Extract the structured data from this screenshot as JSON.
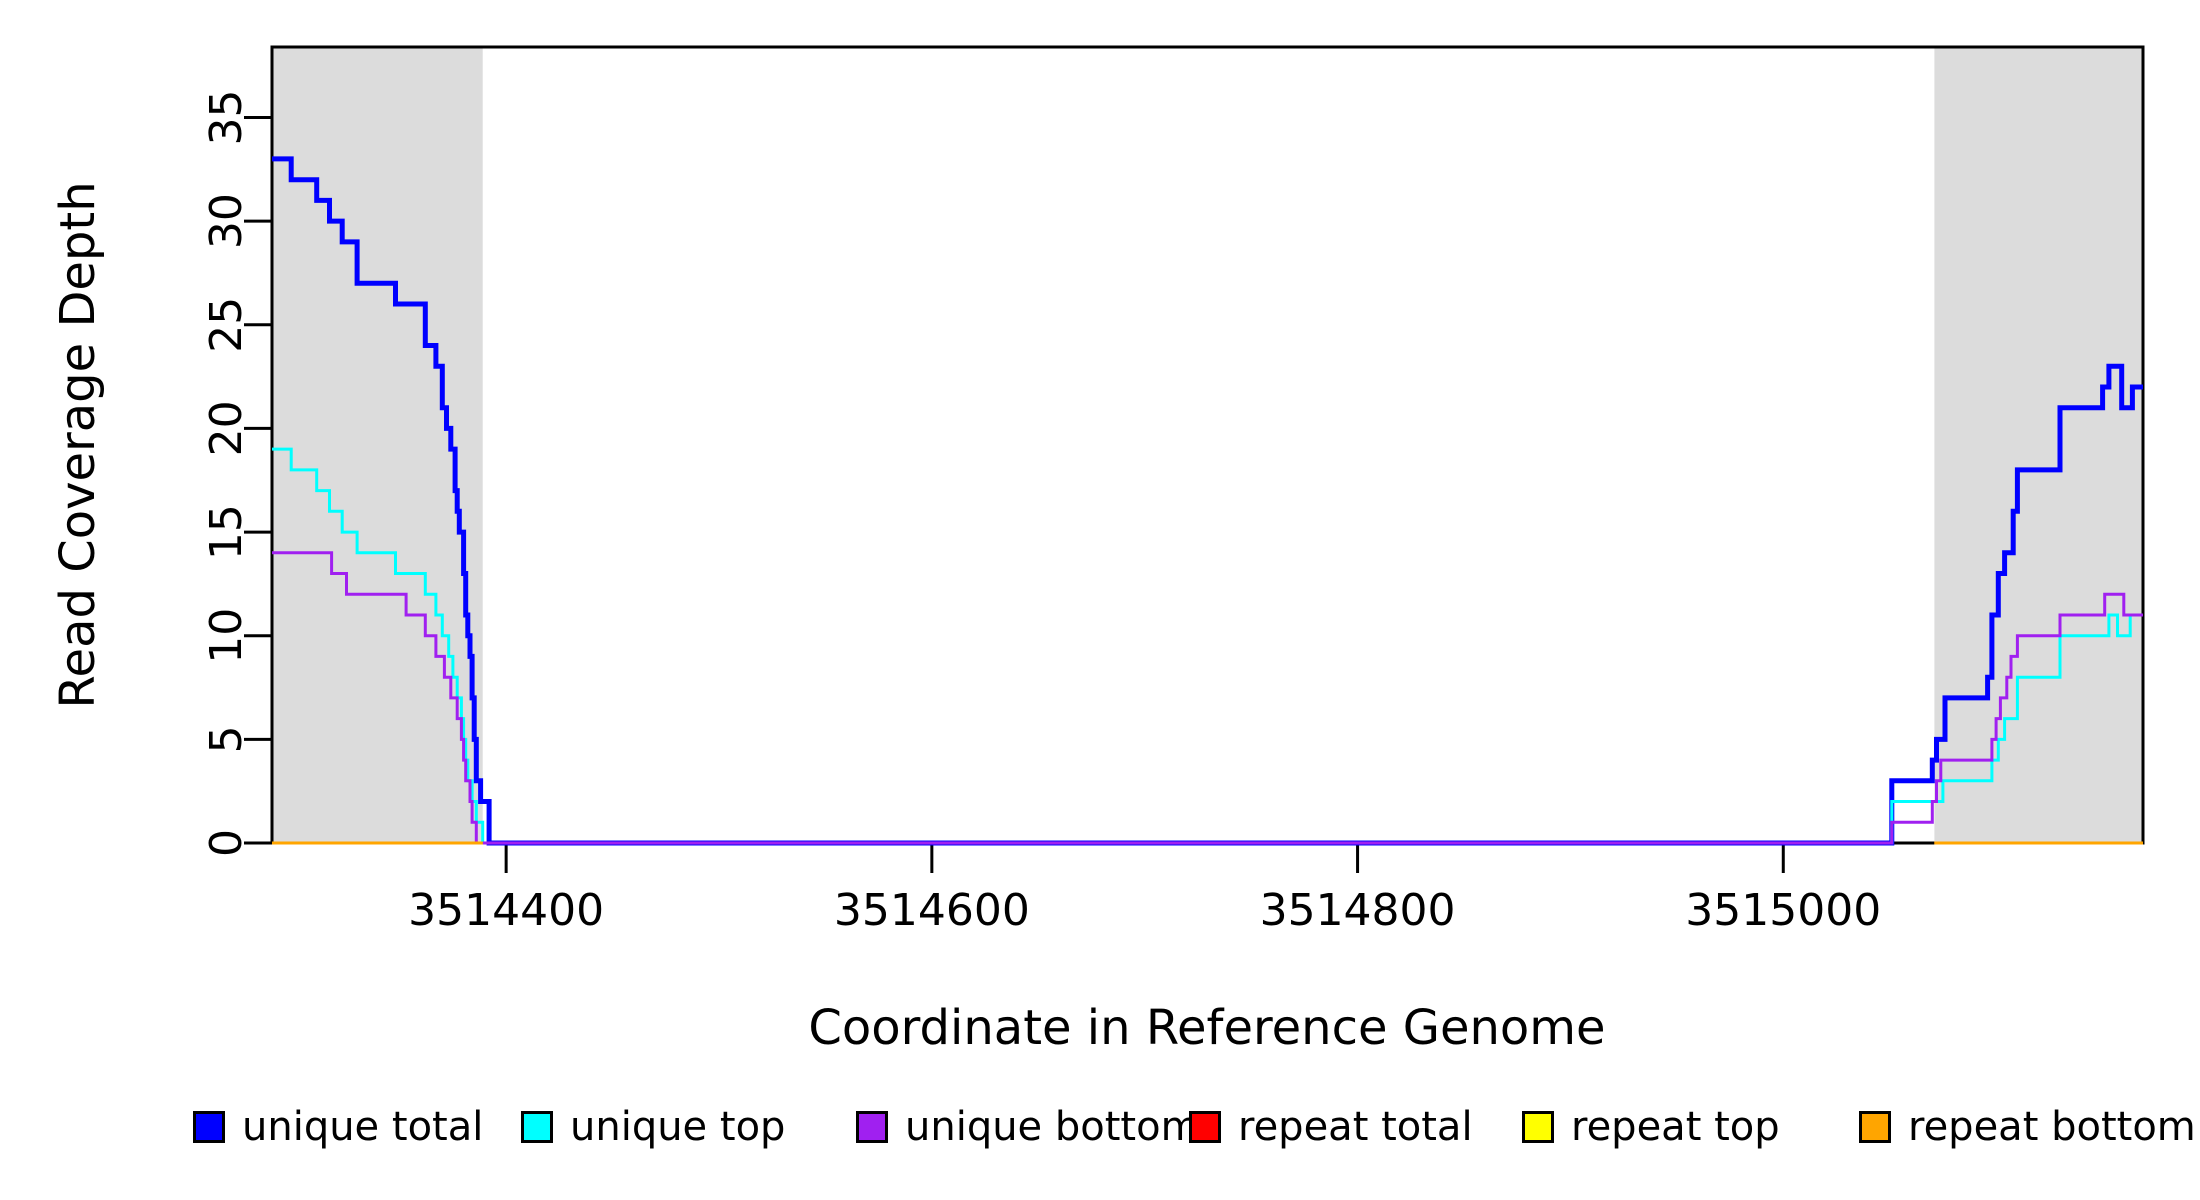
{
  "chart_data": {
    "type": "line",
    "subtype": "step-coverage-plot",
    "title": "",
    "xlabel": "Coordinate in Reference Genome",
    "ylabel": "Read Coverage Depth",
    "x_range": [
      3514290,
      3515169
    ],
    "y_range": [
      0,
      38.4
    ],
    "x_ticks": [
      3514400,
      3514600,
      3514800,
      3515000
    ],
    "y_ticks": [
      0,
      5,
      10,
      15,
      20,
      25,
      30,
      35
    ],
    "grid": false,
    "step_style": "step-after",
    "background_color": "#FFFFFF",
    "shaded_region_color": "#DCDCDC",
    "shaded_regions": [
      {
        "x0": 3514290,
        "x1": 3514389
      },
      {
        "x0": 3515071,
        "x1": 3515169
      }
    ],
    "legend_position": "bottom",
    "series": [
      {
        "name": "unique total",
        "color": "#0000FF",
        "line_width": 5,
        "segments": [
          [
            [
              3514290,
              33
            ],
            [
              3514299,
              32
            ],
            [
              3514311,
              31
            ],
            [
              3514317,
              30
            ],
            [
              3514323,
              29
            ],
            [
              3514330,
              27
            ],
            [
              3514348,
              26
            ],
            [
              3514362,
              24
            ],
            [
              3514367,
              23
            ],
            [
              3514370,
              21
            ],
            [
              3514372,
              20
            ],
            [
              3514374,
              19
            ],
            [
              3514376,
              17
            ],
            [
              3514377,
              16
            ],
            [
              3514378,
              15
            ],
            [
              3514380,
              13
            ],
            [
              3514381,
              11
            ],
            [
              3514382,
              10
            ],
            [
              3514383,
              9
            ],
            [
              3514384,
              7
            ],
            [
              3514385,
              5
            ],
            [
              3514386,
              3
            ],
            [
              3514388,
              2
            ],
            [
              3514392,
              0
            ],
            [
              3515051,
              3
            ],
            [
              3515070,
              4
            ],
            [
              3515072,
              5
            ],
            [
              3515076,
              7
            ],
            [
              3515096,
              8
            ],
            [
              3515098,
              11
            ],
            [
              3515101,
              13
            ],
            [
              3515104,
              14
            ],
            [
              3515108,
              16
            ],
            [
              3515110,
              18
            ],
            [
              3515130,
              21
            ],
            [
              3515150,
              22
            ],
            [
              3515153,
              23
            ],
            [
              3515159,
              21
            ],
            [
              3515164,
              22
            ],
            [
              3515169,
              22
            ]
          ]
        ]
      },
      {
        "name": "unique top",
        "color": "#00FFFF",
        "line_width": 3,
        "segments": [
          [
            [
              3514290,
              19
            ],
            [
              3514299,
              18
            ],
            [
              3514311,
              17
            ],
            [
              3514317,
              16
            ],
            [
              3514323,
              15
            ],
            [
              3514330,
              14
            ],
            [
              3514348,
              13
            ],
            [
              3514362,
              12
            ],
            [
              3514367,
              11
            ],
            [
              3514370,
              10
            ],
            [
              3514373,
              9
            ],
            [
              3514375,
              8
            ],
            [
              3514377,
              7
            ],
            [
              3514379,
              6
            ],
            [
              3514380,
              5
            ],
            [
              3514381,
              4
            ],
            [
              3514382,
              3
            ],
            [
              3514384,
              2
            ],
            [
              3514386,
              1
            ],
            [
              3514389,
              0
            ],
            [
              3515051,
              2
            ],
            [
              3515075,
              3
            ],
            [
              3515098,
              4
            ],
            [
              3515101,
              5
            ],
            [
              3515104,
              6
            ],
            [
              3515110,
              8
            ],
            [
              3515130,
              10
            ],
            [
              3515153,
              11
            ],
            [
              3515157,
              10
            ],
            [
              3515163,
              11
            ],
            [
              3515169,
              11
            ]
          ]
        ]
      },
      {
        "name": "unique bottom",
        "color": "#A020F0",
        "line_width": 3,
        "segments": [
          [
            [
              3514290,
              14
            ],
            [
              3514318,
              13
            ],
            [
              3514325,
              12
            ],
            [
              3514353,
              11
            ],
            [
              3514362,
              10
            ],
            [
              3514367,
              9
            ],
            [
              3514371,
              8
            ],
            [
              3514374,
              7
            ],
            [
              3514377,
              6
            ],
            [
              3514379,
              5
            ],
            [
              3514380,
              4
            ],
            [
              3514381,
              3
            ],
            [
              3514383,
              2
            ],
            [
              3514384,
              1
            ],
            [
              3514386,
              0
            ],
            [
              3515051,
              1
            ],
            [
              3515070,
              2
            ],
            [
              3515072,
              3
            ],
            [
              3515074,
              4
            ],
            [
              3515098,
              5
            ],
            [
              3515100,
              6
            ],
            [
              3515102,
              7
            ],
            [
              3515105,
              8
            ],
            [
              3515107,
              9
            ],
            [
              3515110,
              10
            ],
            [
              3515130,
              11
            ],
            [
              3515151,
              12
            ],
            [
              3515160,
              11
            ],
            [
              3515169,
              11
            ]
          ]
        ]
      },
      {
        "name": "repeat total",
        "color": "#FF0000",
        "line_width": 3,
        "segments": [
          [
            [
              3514290,
              0
            ],
            [
              3514389,
              0
            ]
          ],
          [
            [
              3515071,
              0
            ],
            [
              3515169,
              0
            ]
          ]
        ]
      },
      {
        "name": "repeat top",
        "color": "#FFFF00",
        "line_width": 3,
        "segments": [
          [
            [
              3514290,
              0
            ],
            [
              3514389,
              0
            ]
          ],
          [
            [
              3515071,
              0
            ],
            [
              3515169,
              0
            ]
          ]
        ]
      },
      {
        "name": "repeat bottom",
        "color": "#FFA500",
        "line_width": 3,
        "segments": [
          [
            [
              3514290,
              0
            ],
            [
              3514389,
              0
            ]
          ],
          [
            [
              3515071,
              0
            ],
            [
              3515169,
              0
            ]
          ]
        ]
      }
    ]
  }
}
